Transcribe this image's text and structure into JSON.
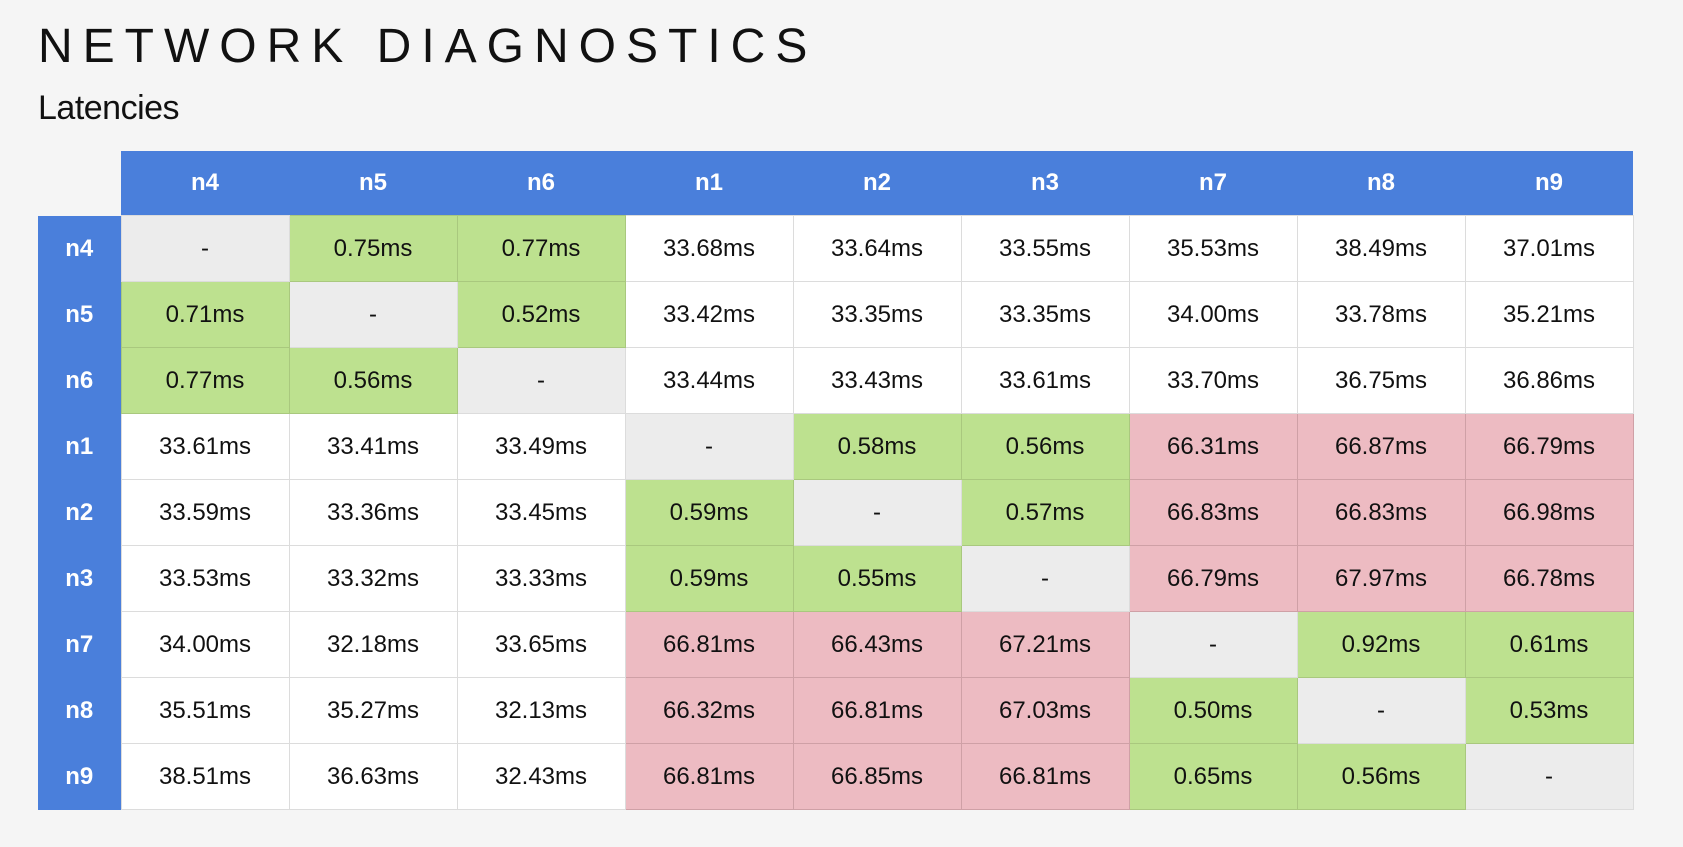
{
  "header": {
    "title": "NETWORK DIAGNOSTICS",
    "subtitle": "Latencies"
  },
  "colors": {
    "header": "#4a7fdb",
    "low": "#bde18f",
    "high": "#edbbc2",
    "self": "#ececec"
  },
  "table": {
    "columns": [
      "n4",
      "n5",
      "n6",
      "n1",
      "n2",
      "n3",
      "n7",
      "n8",
      "n9"
    ],
    "rows": [
      {
        "node": "n4",
        "cells": [
          "-",
          "0.75ms",
          "0.77ms",
          "33.68ms",
          "33.64ms",
          "33.55ms",
          "35.53ms",
          "38.49ms",
          "37.01ms"
        ]
      },
      {
        "node": "n5",
        "cells": [
          "0.71ms",
          "-",
          "0.52ms",
          "33.42ms",
          "33.35ms",
          "33.35ms",
          "34.00ms",
          "33.78ms",
          "35.21ms"
        ]
      },
      {
        "node": "n6",
        "cells": [
          "0.77ms",
          "0.56ms",
          "-",
          "33.44ms",
          "33.43ms",
          "33.61ms",
          "33.70ms",
          "36.75ms",
          "36.86ms"
        ]
      },
      {
        "node": "n1",
        "cells": [
          "33.61ms",
          "33.41ms",
          "33.49ms",
          "-",
          "0.58ms",
          "0.56ms",
          "66.31ms",
          "66.87ms",
          "66.79ms"
        ]
      },
      {
        "node": "n2",
        "cells": [
          "33.59ms",
          "33.36ms",
          "33.45ms",
          "0.59ms",
          "-",
          "0.57ms",
          "66.83ms",
          "66.83ms",
          "66.98ms"
        ]
      },
      {
        "node": "n3",
        "cells": [
          "33.53ms",
          "33.32ms",
          "33.33ms",
          "0.59ms",
          "0.55ms",
          "-",
          "66.79ms",
          "67.97ms",
          "66.78ms"
        ]
      },
      {
        "node": "n7",
        "cells": [
          "34.00ms",
          "32.18ms",
          "33.65ms",
          "66.81ms",
          "66.43ms",
          "67.21ms",
          "-",
          "0.92ms",
          "0.61ms"
        ]
      },
      {
        "node": "n8",
        "cells": [
          "35.51ms",
          "35.27ms",
          "32.13ms",
          "66.32ms",
          "66.81ms",
          "67.03ms",
          "0.50ms",
          "-",
          "0.53ms"
        ]
      },
      {
        "node": "n9",
        "cells": [
          "38.51ms",
          "36.63ms",
          "32.43ms",
          "66.81ms",
          "66.85ms",
          "66.81ms",
          "0.65ms",
          "0.56ms",
          "-"
        ]
      }
    ]
  }
}
